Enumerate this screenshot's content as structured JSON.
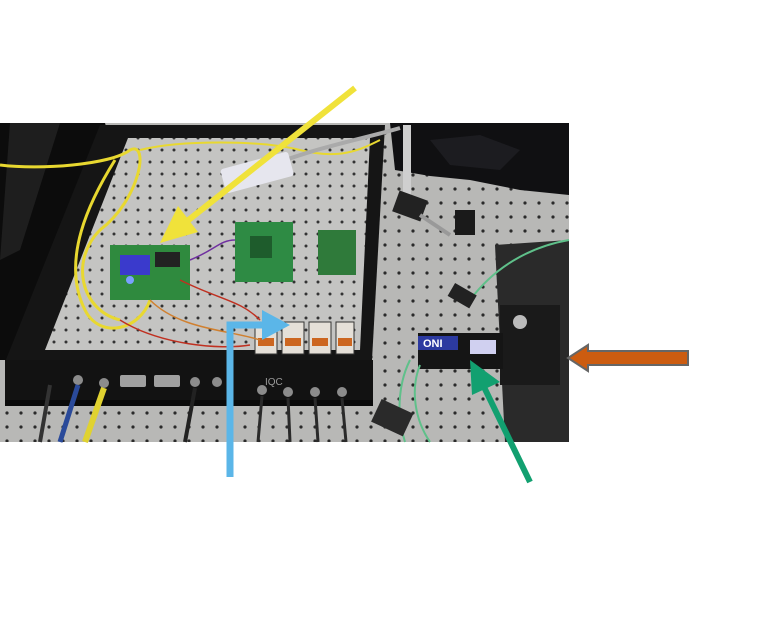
{
  "photo": {
    "description_hidden": "",
    "enclosure_brand": "IQC",
    "camera_brand": "ONI"
  },
  "arrows": [
    {
      "name": "yellow-arrow",
      "color": "#f0e23a"
    },
    {
      "name": "blue-arrow",
      "color": "#5bb6e8"
    },
    {
      "name": "green-arrow",
      "color": "#12a070"
    },
    {
      "name": "orange-arrow",
      "color": "#cc5c10",
      "outline": "#666666"
    }
  ],
  "colors": {
    "table": "#b9b9b7",
    "enclosure": "#141414",
    "pcb_green": "#2f8a3e",
    "cable_yellow": "#e8d830"
  }
}
